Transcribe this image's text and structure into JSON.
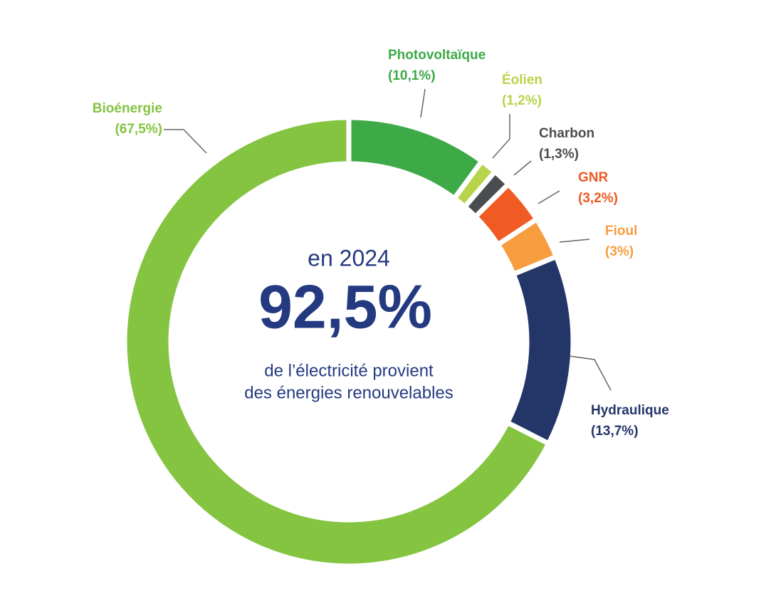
{
  "chart_data": {
    "type": "donut",
    "categories": [
      "Photovoltaïque",
      "Éolien",
      "Charbon",
      "GNR",
      "Fioul",
      "Hydraulique",
      "Bioénergie"
    ],
    "values": [
      10.1,
      1.2,
      1.3,
      3.2,
      3,
      13.7,
      67.5
    ],
    "value_labels": [
      "(10,1%)",
      "(1,2%)",
      "(1,3%)",
      "(3,2%)",
      "(3%)",
      "(13,7%)",
      "(67,5%)"
    ],
    "colors": [
      "#3daa47",
      "#b8d44a",
      "#4a4d50",
      "#f05a23",
      "#f79d3f",
      "#243568",
      "#84c441"
    ],
    "center_text": {
      "year": "en 2024",
      "headline": "92,5%",
      "line1": "de l’électricité provient",
      "line2": "des énergies renouvelables"
    }
  }
}
